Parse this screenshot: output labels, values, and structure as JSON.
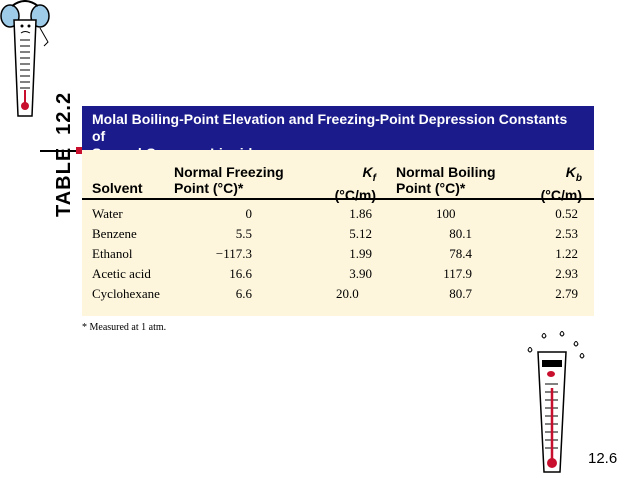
{
  "table_label": {
    "word": "TABLE",
    "number": "12.2"
  },
  "title": {
    "line1": "Molal Boiling-Point Elevation and Freezing-Point Depression Constants of",
    "line2": "Several Common Liquids"
  },
  "columns": {
    "solvent": "Solvent",
    "nfp_line1": "Normal Freezing",
    "nfp_line2": "Point (°C)*",
    "kf_line1": "Kf",
    "kf_line2": "(°C/m)",
    "nbp_line1": "Normal Boiling",
    "nbp_line2": "Point (°C)*",
    "kb_line1": "Kb",
    "kb_line2": "(°C/m)"
  },
  "rows": [
    {
      "solvent": "Water",
      "nfp": "0",
      "kf": "1.86",
      "nbp": "100",
      "kb": "0.52"
    },
    {
      "solvent": "Benzene",
      "nfp": "5.5",
      "kf": "5.12",
      "nbp": "80.1",
      "kb": "2.53"
    },
    {
      "solvent": "Ethanol",
      "nfp": "−117.3",
      "kf": "1.99",
      "nbp": "78.4",
      "kb": "1.22"
    },
    {
      "solvent": "Acetic acid",
      "nfp": "16.6",
      "kf": "3.90",
      "nbp": "117.9",
      "kb": "2.93"
    },
    {
      "solvent": "Cyclohexane",
      "nfp": "6.6",
      "kf": "20.0",
      "nbp": "80.7",
      "kb": "2.79"
    }
  ],
  "footnote": "* Measured at 1 atm.",
  "slide_number": "12.6",
  "colors": {
    "title_bar": "#1b1b8c",
    "table_bg": "#fdf6dc",
    "marker": "#c8102e"
  },
  "icons": [
    "thermometer-earmuffs-icon",
    "thermometer-hot-icon"
  ]
}
